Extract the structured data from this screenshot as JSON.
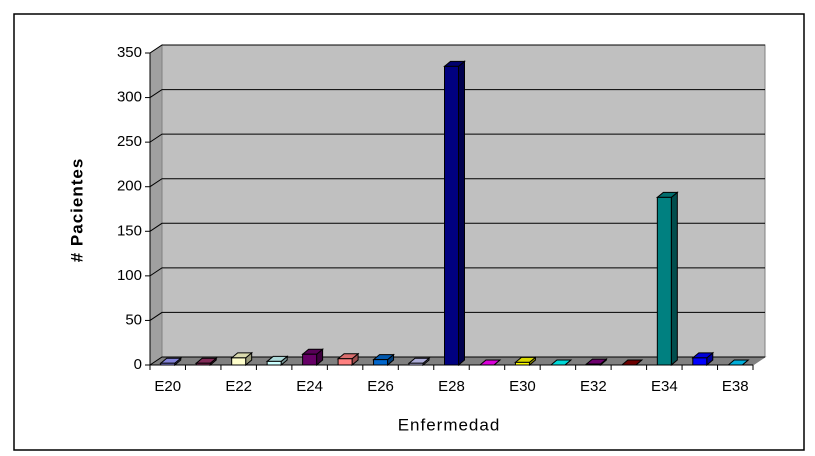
{
  "chart_data": {
    "type": "bar3d",
    "x_label": "Enfermedad",
    "y_label": "# Pacientes",
    "categories": [
      "E20",
      null,
      "E22",
      null,
      "E24",
      null,
      "E26",
      null,
      "E28",
      null,
      "E30",
      null,
      "E32",
      null,
      "E34",
      null,
      "E38"
    ],
    "values": [
      2,
      2,
      8,
      4,
      12,
      7,
      6,
      2,
      335,
      0,
      3,
      0,
      1,
      0,
      188,
      8,
      0
    ],
    "colors": [
      "#9999ff",
      "#993366",
      "#ffffcc",
      "#ccffff",
      "#660066",
      "#ff8080",
      "#0066cc",
      "#ccccff",
      "#000080",
      "#ff00ff",
      "#ffff00",
      "#00ffff",
      "#800080",
      "#800000",
      "#008080",
      "#0000ff",
      "#00ccff"
    ],
    "ylim": [
      0,
      350
    ],
    "yticks": [
      0,
      50,
      100,
      150,
      200,
      250,
      300,
      350
    ],
    "grid": true
  }
}
